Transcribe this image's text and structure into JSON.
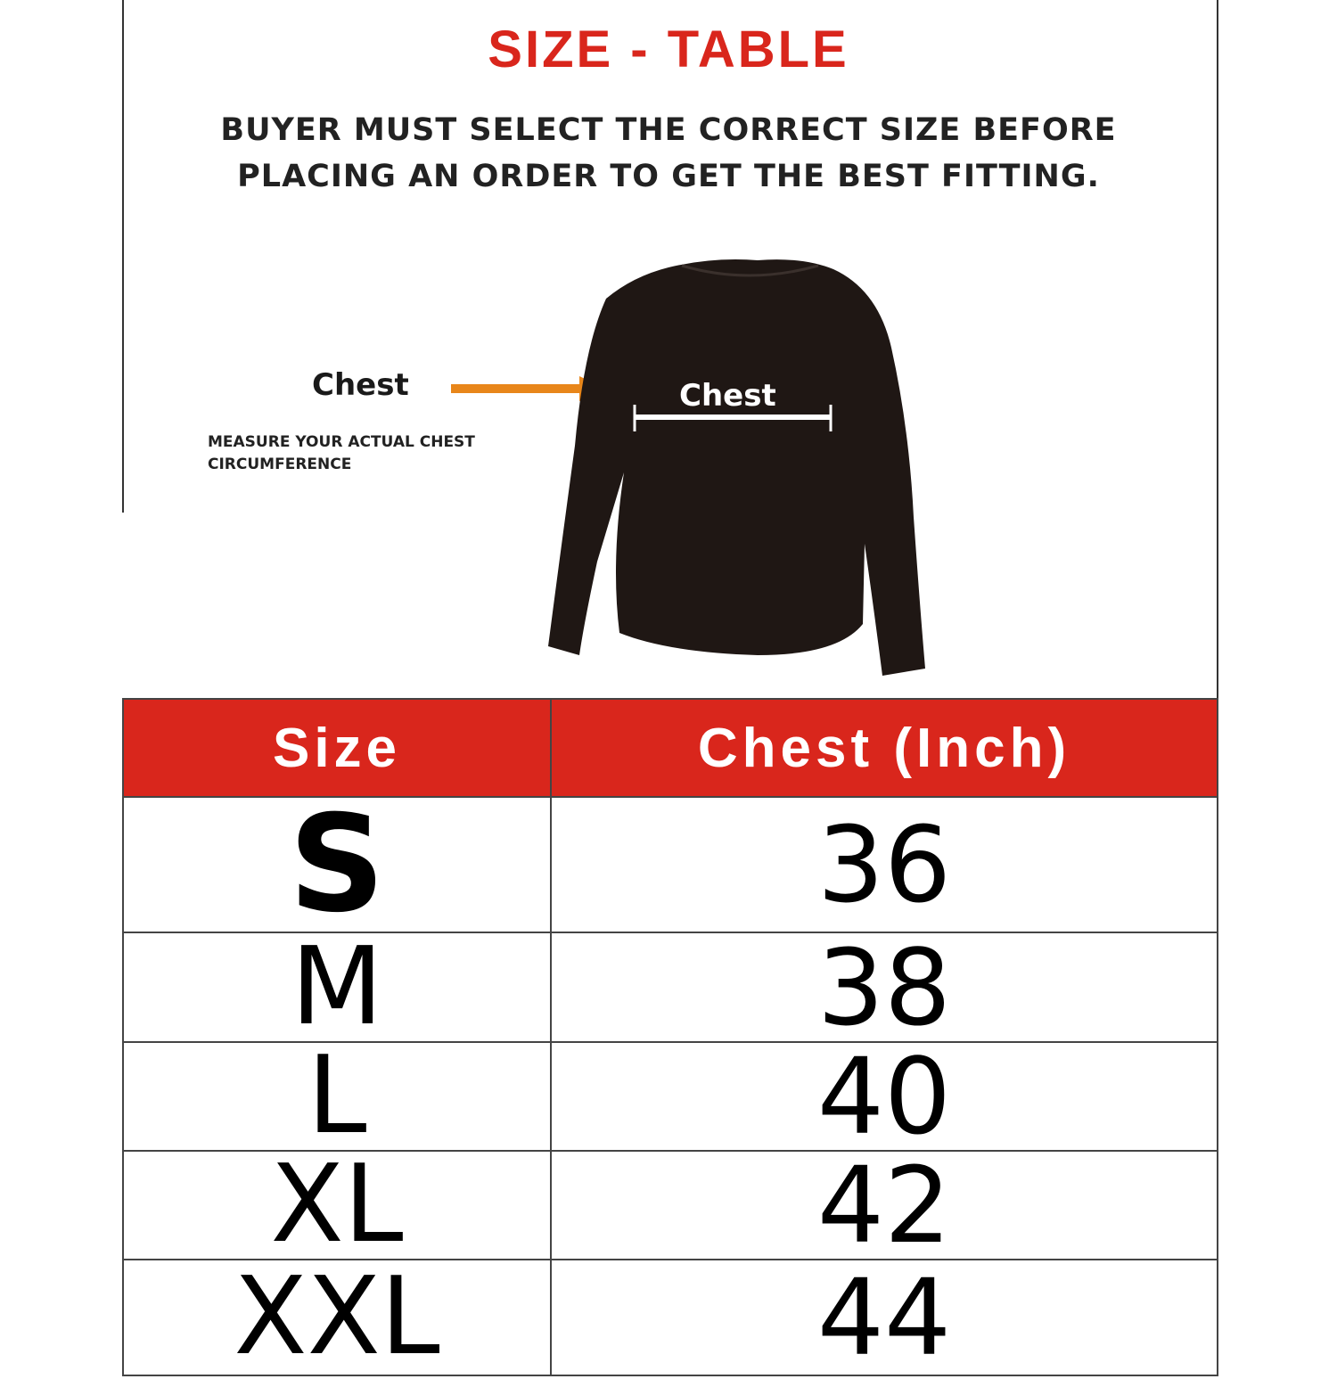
{
  "title": "SIZE - TABLE",
  "notice": [
    "BUYER MUST SELECT THE CORRECT SIZE BEFORE",
    "PLACING AN ORDER TO GET THE BEST FITTING."
  ],
  "diagram": {
    "chest_label": "Chest",
    "instruction": [
      "MEASURE YOUR ACTUAL CHEST",
      "CIRCUMFERENCE"
    ],
    "shirt_chest_label": "Chest",
    "arrow_color": "#e8861a",
    "shirt_color": "#1f1714"
  },
  "table": {
    "header_color": "#d9261c",
    "headers": [
      "Size",
      "Chest (Inch)"
    ],
    "rows": [
      {
        "size": "S",
        "chest": "36"
      },
      {
        "size": "M",
        "chest": "38"
      },
      {
        "size": "L",
        "chest": "40"
      },
      {
        "size": "XL",
        "chest": "42"
      },
      {
        "size": "XXL",
        "chest": "44"
      }
    ]
  }
}
